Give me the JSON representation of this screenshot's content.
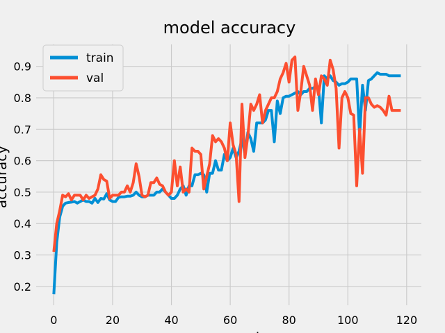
{
  "chart_data": {
    "type": "line",
    "title": "model accuracy",
    "xlabel": "epoch",
    "ylabel": "accuracy",
    "xlim": [
      -6,
      125
    ],
    "ylim": [
      0.14,
      0.97
    ],
    "xticks": [
      0,
      20,
      40,
      60,
      80,
      100,
      120
    ],
    "yticks": [
      0.2,
      0.3,
      0.4,
      0.5,
      0.6,
      0.7,
      0.8,
      0.9
    ],
    "grid": true,
    "legend_position": "top-left",
    "colors": {
      "train": "#008fd5",
      "val": "#fc4f30",
      "grid": "#cbcbcb",
      "background": "#f0f0f0"
    },
    "series": [
      {
        "name": "train",
        "x": [
          0,
          1,
          2,
          3,
          4,
          5,
          6,
          7,
          8,
          9,
          10,
          11,
          12,
          13,
          14,
          15,
          16,
          17,
          18,
          19,
          20,
          21,
          22,
          23,
          24,
          25,
          26,
          27,
          28,
          29,
          30,
          31,
          32,
          33,
          34,
          35,
          36,
          37,
          38,
          39,
          40,
          41,
          42,
          43,
          44,
          45,
          46,
          47,
          48,
          49,
          50,
          51,
          52,
          53,
          54,
          55,
          56,
          57,
          58,
          59,
          60,
          61,
          62,
          63,
          64,
          65,
          66,
          67,
          68,
          69,
          70,
          71,
          72,
          73,
          74,
          75,
          76,
          77,
          78,
          79,
          80,
          81,
          82,
          83,
          84,
          85,
          86,
          87,
          88,
          89,
          90,
          91,
          92,
          93,
          94,
          95,
          96,
          97,
          98,
          99,
          100,
          101,
          102,
          103,
          104,
          105,
          106,
          107,
          108,
          109,
          110,
          111,
          112,
          113,
          114,
          115,
          116,
          117,
          118
        ],
        "y": [
          0.175,
          0.34,
          0.42,
          0.455,
          0.465,
          0.467,
          0.468,
          0.47,
          0.465,
          0.47,
          0.475,
          0.47,
          0.47,
          0.465,
          0.48,
          0.467,
          0.48,
          0.478,
          0.495,
          0.475,
          0.47,
          0.47,
          0.483,
          0.485,
          0.485,
          0.487,
          0.487,
          0.49,
          0.5,
          0.49,
          0.485,
          0.485,
          0.49,
          0.49,
          0.49,
          0.5,
          0.5,
          0.51,
          0.5,
          0.49,
          0.48,
          0.48,
          0.49,
          0.51,
          0.52,
          0.49,
          0.52,
          0.52,
          0.555,
          0.555,
          0.56,
          0.555,
          0.5,
          0.56,
          0.56,
          0.6,
          0.57,
          0.57,
          0.62,
          0.6,
          0.61,
          0.64,
          0.61,
          0.63,
          0.67,
          0.62,
          0.69,
          0.67,
          0.63,
          0.72,
          0.72,
          0.72,
          0.73,
          0.76,
          0.76,
          0.66,
          0.79,
          0.75,
          0.8,
          0.805,
          0.805,
          0.81,
          0.815,
          0.82,
          0.81,
          0.82,
          0.82,
          0.83,
          0.83,
          0.835,
          0.835,
          0.72,
          0.87,
          0.86,
          0.87,
          0.855,
          0.85,
          0.84,
          0.845,
          0.845,
          0.85,
          0.86,
          0.86,
          0.86,
          0.68,
          0.84,
          0.76,
          0.855,
          0.86,
          0.87,
          0.88,
          0.875,
          0.875,
          0.875,
          0.87,
          0.87,
          0.87,
          0.87,
          0.87
        ]
      },
      {
        "name": "val",
        "x": [
          0,
          1,
          2,
          3,
          4,
          5,
          6,
          7,
          8,
          9,
          10,
          11,
          12,
          13,
          14,
          15,
          16,
          17,
          18,
          19,
          20,
          21,
          22,
          23,
          24,
          25,
          26,
          27,
          28,
          29,
          30,
          31,
          32,
          33,
          34,
          35,
          36,
          37,
          38,
          39,
          40,
          41,
          42,
          43,
          44,
          45,
          46,
          47,
          48,
          49,
          50,
          51,
          52,
          53,
          54,
          55,
          56,
          57,
          58,
          59,
          60,
          61,
          62,
          63,
          64,
          65,
          66,
          67,
          68,
          69,
          70,
          71,
          72,
          73,
          74,
          75,
          76,
          77,
          78,
          79,
          80,
          81,
          82,
          83,
          84,
          85,
          86,
          87,
          88,
          89,
          90,
          91,
          92,
          93,
          94,
          95,
          96,
          97,
          98,
          99,
          100,
          101,
          102,
          103,
          104,
          105,
          106,
          107,
          108,
          109,
          110,
          111,
          112,
          113,
          114,
          115,
          116,
          117,
          118
        ],
        "y": [
          0.31,
          0.4,
          0.44,
          0.49,
          0.485,
          0.495,
          0.475,
          0.49,
          0.49,
          0.49,
          0.475,
          0.49,
          0.48,
          0.485,
          0.49,
          0.51,
          0.555,
          0.54,
          0.535,
          0.48,
          0.49,
          0.49,
          0.49,
          0.5,
          0.5,
          0.52,
          0.5,
          0.53,
          0.59,
          0.55,
          0.49,
          0.485,
          0.49,
          0.53,
          0.53,
          0.545,
          0.525,
          0.52,
          0.5,
          0.49,
          0.5,
          0.6,
          0.52,
          0.58,
          0.5,
          0.51,
          0.5,
          0.64,
          0.63,
          0.63,
          0.62,
          0.51,
          0.55,
          0.59,
          0.68,
          0.66,
          0.67,
          0.66,
          0.64,
          0.6,
          0.72,
          0.65,
          0.62,
          0.47,
          0.78,
          0.61,
          0.68,
          0.78,
          0.76,
          0.78,
          0.81,
          0.72,
          0.76,
          0.78,
          0.8,
          0.8,
          0.82,
          0.86,
          0.88,
          0.91,
          0.85,
          0.92,
          0.93,
          0.76,
          0.82,
          0.9,
          0.87,
          0.84,
          0.76,
          0.86,
          0.81,
          0.87,
          0.86,
          0.84,
          0.92,
          0.89,
          0.83,
          0.64,
          0.8,
          0.82,
          0.8,
          0.75,
          0.745,
          0.52,
          0.7,
          0.56,
          0.8,
          0.8,
          0.78,
          0.77,
          0.775,
          0.77,
          0.76,
          0.745,
          0.805,
          0.76,
          0.76,
          0.76,
          0.76
        ]
      }
    ]
  }
}
